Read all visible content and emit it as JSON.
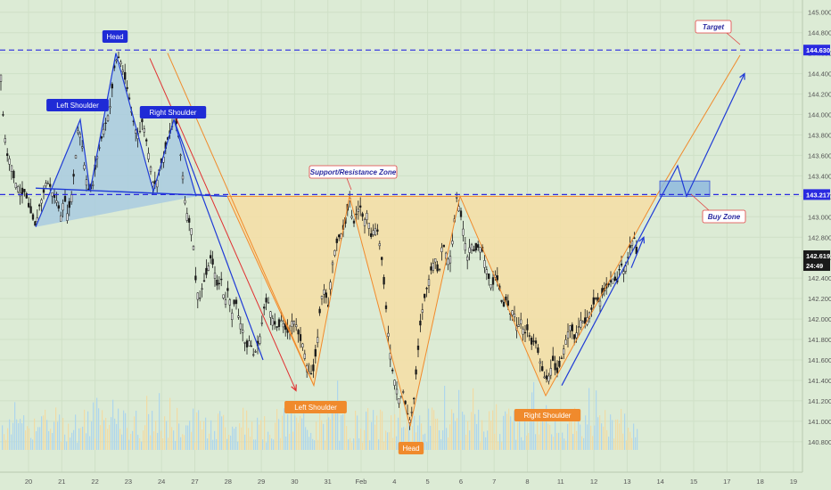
{
  "chart_data": {
    "type": "candlestick",
    "ylim": [
      140.72,
      145.05
    ],
    "y_ticks": [
      140.8,
      141.0,
      141.2,
      141.4,
      141.6,
      141.8,
      142.0,
      142.2,
      142.4,
      142.6,
      142.8,
      143.0,
      143.2,
      143.4,
      143.6,
      143.8,
      144.0,
      144.2,
      144.4,
      144.6,
      144.8,
      145.0
    ],
    "x_labels": [
      "20",
      "21",
      "22",
      "23",
      "24",
      "27",
      "28",
      "29",
      "30",
      "31",
      "Feb",
      "4",
      "5",
      "6",
      "7",
      "8",
      "11",
      "12",
      "13",
      "14",
      "15",
      "17",
      "18",
      "19"
    ],
    "price_labels": {
      "target": "144.630",
      "resistance": "143.217",
      "current": "142.619",
      "countdown": "24:49"
    },
    "levels": {
      "target": 144.63,
      "resistance": 143.217
    },
    "annotations": {
      "target": "Target",
      "buy_zone": "Buy Zone",
      "support_resistance": "Support/Resistance Zone",
      "head_top": "Head",
      "left_shoulder_top": "Left Shoulder",
      "right_shoulder_top": "Right Shoulder",
      "left_shoulder_bottom": "Left Shoulder",
      "head_bottom": "Head",
      "right_shoulder_bottom": "Right Shoulder"
    },
    "close_path": [
      [
        0,
        144.55
      ],
      [
        4,
        143.9
      ],
      [
        8,
        143.6
      ],
      [
        12,
        143.55
      ],
      [
        16,
        143.35
      ],
      [
        20,
        143.3
      ],
      [
        24,
        143.2
      ],
      [
        28,
        143.25
      ],
      [
        32,
        143.1
      ],
      [
        36,
        143.0
      ],
      [
        40,
        142.9
      ],
      [
        44,
        143.1
      ],
      [
        48,
        143.2
      ],
      [
        52,
        143.35
      ],
      [
        56,
        143.3
      ],
      [
        60,
        143.2
      ],
      [
        64,
        143.15
      ],
      [
        68,
        143.0
      ],
      [
        72,
        143.2
      ],
      [
        76,
        143.0
      ],
      [
        80,
        143.2
      ],
      [
        84,
        143.5
      ],
      [
        88,
        143.9
      ],
      [
        92,
        143.7
      ],
      [
        96,
        143.4
      ],
      [
        100,
        143.25
      ],
      [
        104,
        143.3
      ],
      [
        108,
        143.55
      ],
      [
        112,
        143.7
      ],
      [
        116,
        143.85
      ],
      [
        120,
        143.95
      ],
      [
        124,
        144.1
      ],
      [
        128,
        144.45
      ],
      [
        132,
        144.58
      ],
      [
        136,
        144.5
      ],
      [
        140,
        144.35
      ],
      [
        144,
        144.2
      ],
      [
        148,
        144.0
      ],
      [
        152,
        143.85
      ],
      [
        156,
        143.8
      ],
      [
        160,
        143.95
      ],
      [
        164,
        143.75
      ],
      [
        168,
        143.55
      ],
      [
        172,
        143.3
      ],
      [
        176,
        143.35
      ],
      [
        180,
        143.5
      ],
      [
        184,
        143.6
      ],
      [
        188,
        143.75
      ],
      [
        192,
        143.85
      ],
      [
        196,
        144.0
      ],
      [
        200,
        143.8
      ],
      [
        204,
        143.5
      ],
      [
        208,
        143.1
      ],
      [
        212,
        142.95
      ],
      [
        216,
        142.85
      ],
      [
        220,
        142.3
      ],
      [
        224,
        142.2
      ],
      [
        228,
        142.35
      ],
      [
        232,
        142.45
      ],
      [
        236,
        142.6
      ],
      [
        240,
        142.5
      ],
      [
        244,
        142.3
      ],
      [
        248,
        142.4
      ],
      [
        252,
        142.15
      ],
      [
        256,
        142.3
      ],
      [
        260,
        142.05
      ],
      [
        264,
        142.2
      ],
      [
        268,
        142.0
      ],
      [
        272,
        141.9
      ],
      [
        276,
        141.7
      ],
      [
        280,
        141.8
      ],
      [
        284,
        141.65
      ],
      [
        288,
        141.7
      ],
      [
        292,
        141.85
      ],
      [
        296,
        142.1
      ],
      [
        300,
        142.2
      ],
      [
        304,
        142.05
      ],
      [
        308,
        141.95
      ],
      [
        312,
        141.9
      ],
      [
        316,
        142.0
      ],
      [
        320,
        141.9
      ],
      [
        324,
        141.85
      ],
      [
        328,
        142.0
      ],
      [
        332,
        141.95
      ],
      [
        336,
        141.8
      ],
      [
        340,
        141.75
      ],
      [
        344,
        141.55
      ],
      [
        348,
        141.45
      ],
      [
        352,
        141.5
      ],
      [
        356,
        141.8
      ],
      [
        360,
        142.2
      ],
      [
        364,
        142.3
      ],
      [
        368,
        142.1
      ],
      [
        372,
        142.5
      ],
      [
        376,
        142.7
      ],
      [
        380,
        142.8
      ],
      [
        384,
        142.85
      ],
      [
        388,
        142.95
      ],
      [
        392,
        143.2
      ],
      [
        396,
        142.9
      ],
      [
        400,
        143.05
      ],
      [
        404,
        143.1
      ],
      [
        408,
        142.95
      ],
      [
        412,
        143.05
      ],
      [
        416,
        142.8
      ],
      [
        420,
        142.9
      ],
      [
        424,
        142.85
      ],
      [
        428,
        142.6
      ],
      [
        432,
        142.2
      ],
      [
        436,
        141.8
      ],
      [
        440,
        141.5
      ],
      [
        444,
        141.35
      ],
      [
        448,
        141.2
      ],
      [
        452,
        141.3
      ],
      [
        456,
        141.1
      ],
      [
        460,
        141.0
      ],
      [
        464,
        141.2
      ],
      [
        468,
        141.6
      ],
      [
        472,
        142.0
      ],
      [
        476,
        142.2
      ],
      [
        480,
        142.35
      ],
      [
        484,
        142.5
      ],
      [
        488,
        142.6
      ],
      [
        492,
        142.4
      ],
      [
        496,
        142.75
      ],
      [
        500,
        142.65
      ],
      [
        504,
        142.55
      ],
      [
        508,
        142.8
      ],
      [
        512,
        143.2
      ],
      [
        516,
        143.05
      ],
      [
        520,
        142.85
      ],
      [
        524,
        142.6
      ],
      [
        528,
        142.75
      ],
      [
        532,
        142.65
      ],
      [
        536,
        142.7
      ],
      [
        540,
        142.7
      ],
      [
        544,
        142.55
      ],
      [
        548,
        142.4
      ],
      [
        552,
        142.3
      ],
      [
        556,
        142.45
      ],
      [
        560,
        142.3
      ],
      [
        564,
        142.1
      ],
      [
        568,
        142.2
      ],
      [
        572,
        142.05
      ],
      [
        576,
        142.1
      ],
      [
        580,
        141.9
      ],
      [
        584,
        142.0
      ],
      [
        588,
        141.85
      ],
      [
        592,
        141.9
      ],
      [
        596,
        141.75
      ],
      [
        600,
        141.8
      ],
      [
        604,
        141.65
      ],
      [
        608,
        141.5
      ],
      [
        612,
        141.4
      ],
      [
        616,
        141.45
      ],
      [
        620,
        141.6
      ],
      [
        624,
        141.45
      ],
      [
        628,
        141.55
      ],
      [
        632,
        141.7
      ],
      [
        636,
        141.85
      ],
      [
        640,
        141.95
      ],
      [
        644,
        141.8
      ],
      [
        648,
        141.9
      ],
      [
        652,
        142.0
      ],
      [
        656,
        141.95
      ],
      [
        660,
        142.05
      ],
      [
        664,
        142.1
      ],
      [
        668,
        142.2
      ],
      [
        672,
        142.15
      ],
      [
        676,
        142.25
      ],
      [
        680,
        142.3
      ],
      [
        684,
        142.35
      ],
      [
        688,
        142.4
      ],
      [
        692,
        142.35
      ],
      [
        696,
        142.55
      ],
      [
        700,
        142.45
      ],
      [
        704,
        142.6
      ],
      [
        708,
        142.75
      ],
      [
        712,
        142.8
      ],
      [
        714,
        142.62
      ]
    ],
    "patterns": {
      "hs_top": [
        [
          40,
          142.9
        ],
        [
          90,
          143.95
        ],
        [
          101,
          143.25
        ],
        [
          130,
          144.6
        ],
        [
          172,
          143.25
        ],
        [
          195,
          143.95
        ],
        [
          220,
          143.2
        ]
      ],
      "inverse_hs": [
        [
          255,
          143.2
        ],
        [
          352,
          141.35
        ],
        [
          392,
          143.2
        ],
        [
          460,
          140.95
        ],
        [
          516,
          143.2
        ],
        [
          612,
          141.25
        ],
        [
          736,
          143.2
        ]
      ],
      "top_neckline": [
        [
          40,
          143.28
        ],
        [
          255,
          143.2
        ]
      ],
      "bottom_neckline": [
        [
          255,
          143.2
        ],
        [
          736,
          143.2
        ]
      ],
      "target_path": [
        [
          736,
          143.2
        ],
        [
          830,
          144.58
        ]
      ],
      "blue_arrow": [
        [
          630,
          141.35
        ],
        [
          760,
          143.5
        ],
        [
          770,
          143.2
        ],
        [
          835,
          144.4
        ]
      ],
      "small_arrow": [
        [
          708,
          142.5
        ],
        [
          722,
          142.8
        ]
      ],
      "downtrend_blue": [
        [
          195,
          143.95
        ],
        [
          295,
          141.6
        ]
      ],
      "downtrend_red": [
        [
          168,
          144.55
        ],
        [
          332,
          141.3
        ]
      ],
      "downtrend_orange": [
        [
          188,
          144.6
        ],
        [
          352,
          141.35
        ]
      ],
      "buy_zone_box": {
        "x": [
          740,
          796
        ],
        "y": [
          143.2,
          143.35
        ]
      }
    },
    "colors": {
      "background": "#dcebd5",
      "candle": "#1a1a1a",
      "top_fill": "#a9cbe0",
      "top_line": "#1f3bd6",
      "bottom_fill": "#f6dea4",
      "bottom_line": "#f08a2c",
      "dashed_level": "#2a2ae0",
      "red_line": "#e03030",
      "label_orange": "#f08a2c",
      "label_blue": "#1f2bd6",
      "label_red_border": "#e04040",
      "current_price_bg": "#1a1a1a",
      "volume_a": "#f3d9a0",
      "volume_b": "#a9d4ee"
    }
  }
}
